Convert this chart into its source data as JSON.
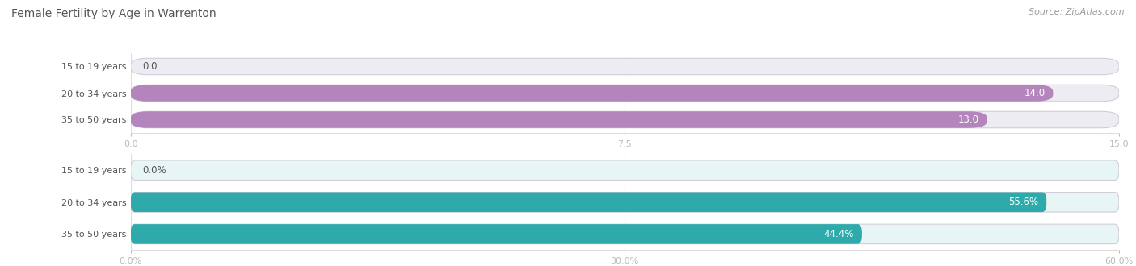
{
  "title": "Female Fertility by Age in Warrenton",
  "source": "Source: ZipAtlas.com",
  "chart1": {
    "categories": [
      "15 to 19 years",
      "20 to 34 years",
      "35 to 50 years"
    ],
    "values": [
      0.0,
      14.0,
      13.0
    ],
    "xlim": [
      0,
      15.0
    ],
    "xticks": [
      0.0,
      7.5,
      15.0
    ],
    "xtick_labels": [
      "0.0",
      "7.5",
      "15.0"
    ],
    "bar_color": "#b484bc",
    "bg_color": "#eeecf3",
    "label_color_inside": "#ffffff",
    "label_color_outside": "#555555"
  },
  "chart2": {
    "categories": [
      "15 to 19 years",
      "20 to 34 years",
      "35 to 50 years"
    ],
    "values": [
      0.0,
      55.6,
      44.4
    ],
    "xlim": [
      0,
      60.0
    ],
    "xticks": [
      0.0,
      30.0,
      60.0
    ],
    "xtick_labels": [
      "0.0%",
      "30.0%",
      "60.0%"
    ],
    "bar_color": "#2eaaaa",
    "bg_color": "#e8f5f5",
    "label_color_inside": "#ffffff",
    "label_color_outside": "#555555"
  },
  "bar_height": 0.62,
  "label_fontsize": 8.5,
  "tick_fontsize": 8,
  "category_fontsize": 8,
  "title_fontsize": 10,
  "source_fontsize": 8,
  "title_color": "#555555",
  "source_color": "#999999",
  "cat_label_color": "#555555",
  "ylabel_width": 0.115
}
